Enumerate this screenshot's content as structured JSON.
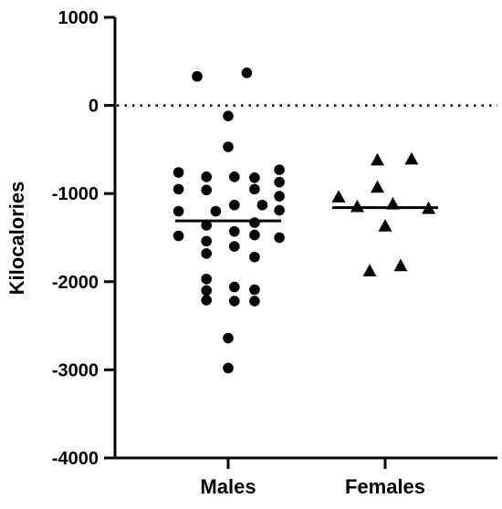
{
  "chart_data": {
    "type": "scatter",
    "title": "",
    "xlabel": "",
    "ylabel": "Kilocalories",
    "categories": [
      "Males",
      "Females"
    ],
    "ylim": [
      -4000,
      1000
    ],
    "yticks": [
      "1000",
      "0",
      "-1000",
      "-2000",
      "-3000",
      "-4000"
    ],
    "reference_line": {
      "y": 0,
      "style": "dotted"
    },
    "grid": false,
    "legend": "none",
    "series": [
      {
        "category": "Males",
        "marker": "circle",
        "color": "#000000",
        "median": -1310,
        "points": [
          {
            "x": -0.2,
            "y": 330
          },
          {
            "x": 0.12,
            "y": 370
          },
          {
            "x": 0.0,
            "y": -120
          },
          {
            "x": 0.0,
            "y": -470
          },
          {
            "x": -0.32,
            "y": -760
          },
          {
            "x": -0.14,
            "y": -810
          },
          {
            "x": 0.04,
            "y": -810
          },
          {
            "x": 0.17,
            "y": -820
          },
          {
            "x": 0.33,
            "y": -730
          },
          {
            "x": 0.33,
            "y": -870
          },
          {
            "x": -0.32,
            "y": -950
          },
          {
            "x": -0.14,
            "y": -960
          },
          {
            "x": 0.17,
            "y": -950
          },
          {
            "x": 0.33,
            "y": -1030
          },
          {
            "x": 0.04,
            "y": -1130
          },
          {
            "x": 0.22,
            "y": -1130
          },
          {
            "x": -0.32,
            "y": -1200
          },
          {
            "x": -0.08,
            "y": -1200
          },
          {
            "x": 0.33,
            "y": -1190
          },
          {
            "x": 0.17,
            "y": -1330
          },
          {
            "x": -0.14,
            "y": -1360
          },
          {
            "x": 0.04,
            "y": -1430
          },
          {
            "x": -0.32,
            "y": -1480
          },
          {
            "x": -0.14,
            "y": -1540
          },
          {
            "x": 0.17,
            "y": -1470
          },
          {
            "x": 0.33,
            "y": -1500
          },
          {
            "x": 0.04,
            "y": -1600
          },
          {
            "x": -0.14,
            "y": -1680
          },
          {
            "x": 0.17,
            "y": -1720
          },
          {
            "x": -0.14,
            "y": -1970
          },
          {
            "x": 0.04,
            "y": -2060
          },
          {
            "x": 0.17,
            "y": -2090
          },
          {
            "x": -0.14,
            "y": -2100
          },
          {
            "x": -0.14,
            "y": -2210
          },
          {
            "x": 0.04,
            "y": -2220
          },
          {
            "x": 0.17,
            "y": -2220
          },
          {
            "x": 0.0,
            "y": -2640
          },
          {
            "x": 0.0,
            "y": -2980
          }
        ]
      },
      {
        "category": "Females",
        "marker": "triangle",
        "color": "#000000",
        "median": -1160,
        "points": [
          {
            "x": -0.05,
            "y": -620
          },
          {
            "x": 0.17,
            "y": -610
          },
          {
            "x": -0.05,
            "y": -930
          },
          {
            "x": -0.3,
            "y": -1040
          },
          {
            "x": -0.18,
            "y": -1150
          },
          {
            "x": 0.05,
            "y": -1120
          },
          {
            "x": 0.28,
            "y": -1170
          },
          {
            "x": 0.0,
            "y": -1370
          },
          {
            "x": -0.1,
            "y": -1880
          },
          {
            "x": 0.1,
            "y": -1820
          }
        ]
      }
    ]
  }
}
